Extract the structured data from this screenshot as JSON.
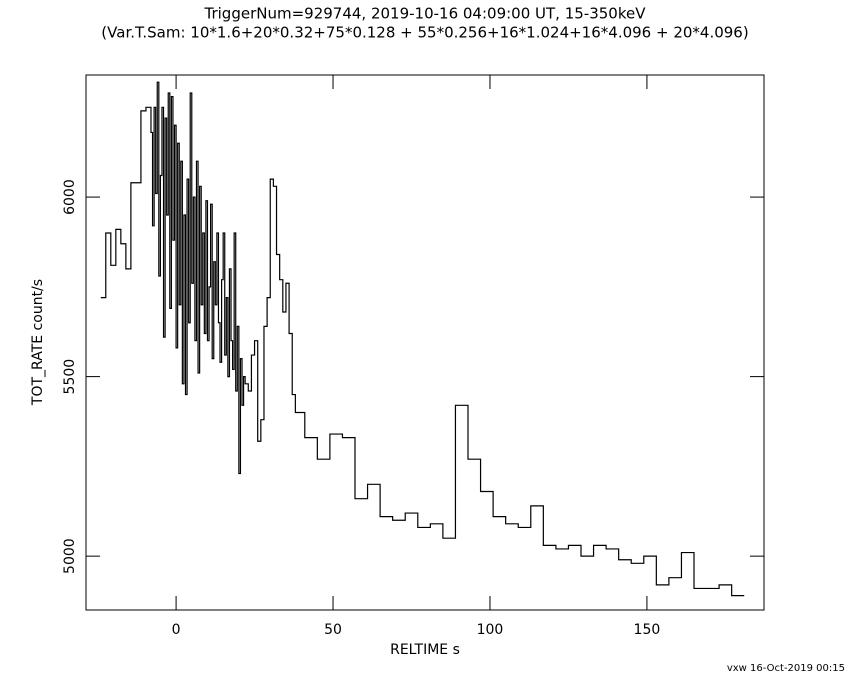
{
  "chart_data": {
    "type": "step",
    "title": "TriggerNum=929744, 2019-10-16 04:09:00 UT, 15-350keV",
    "subtitle": "(Var.T.Sam: 10*1.6+20*0.32+75*0.128  +  55*0.256+16*1.024+16*4.096  +  20*4.096)",
    "xlabel": "RELTIME  s",
    "ylabel": "TOT_RATE  count/s",
    "annotation": "vxw 16-Oct-2019 00:15",
    "x": [
      -24,
      -22.4,
      -20.8,
      -19.2,
      -17.6,
      -16,
      -14.4,
      -12.8,
      -11.2,
      -9.6,
      -8,
      -7.5,
      -7,
      -6.5,
      -6,
      -5.5,
      -5,
      -4.5,
      -4,
      -3.5,
      -3,
      -2.5,
      -2,
      -1.5,
      -1,
      -0.5,
      0,
      0.5,
      1,
      1.5,
      2,
      2.5,
      3,
      3.5,
      4,
      4.5,
      5,
      5.5,
      6,
      6.5,
      7,
      7.5,
      8,
      8.5,
      9,
      9.5,
      10,
      10.5,
      11,
      11.5,
      12,
      12.5,
      13,
      13.5,
      14,
      14.5,
      15,
      15.5,
      16,
      16.5,
      17,
      17.5,
      18,
      18.5,
      19,
      19.5,
      20,
      20.5,
      21,
      21.5,
      22,
      23,
      24,
      25,
      26,
      27,
      28,
      29,
      30,
      31,
      32,
      33,
      34,
      35,
      36,
      37,
      38,
      41,
      45,
      49,
      53,
      57,
      61,
      65,
      69,
      73,
      77,
      81,
      85,
      89,
      93,
      97,
      101,
      105,
      109,
      113,
      117,
      121,
      125,
      129,
      133,
      137,
      141,
      145,
      149,
      153,
      157,
      161,
      165,
      169,
      173,
      177,
      181
    ],
    "series": [
      {
        "color": "#000000",
        "values": [
          5720,
          5900,
          5810,
          5910,
          5870,
          5800,
          6040,
          6040,
          6240,
          6250,
          6180,
          5920,
          6250,
          6010,
          6320,
          5780,
          6060,
          6250,
          5610,
          6220,
          5950,
          6290,
          5690,
          6280,
          5880,
          6200,
          5580,
          6150,
          5700,
          6100,
          5480,
          5950,
          5450,
          6050,
          5650,
          6290,
          5760,
          6000,
          5600,
          6100,
          5510,
          6030,
          5700,
          5900,
          5620,
          5990,
          5600,
          5750,
          5980,
          5550,
          5820,
          5700,
          5900,
          5650,
          5540,
          5770,
          5900,
          5560,
          5720,
          5500,
          5800,
          5600,
          5520,
          5900,
          5460,
          5640,
          5230,
          5550,
          5420,
          5500,
          5480,
          5460,
          5560,
          5600,
          5320,
          5380,
          5640,
          5720,
          6050,
          6030,
          5840,
          5770,
          5680,
          5760,
          5620,
          5450,
          5400,
          5330,
          5270,
          5340,
          5330,
          5160,
          5200,
          5110,
          5100,
          5120,
          5080,
          5090,
          5050,
          5420,
          5270,
          5180,
          5110,
          5090,
          5080,
          5140,
          5030,
          5020,
          5030,
          5000,
          5030,
          5020,
          4990,
          4980,
          5000,
          4920,
          4940,
          5010,
          4910,
          4910,
          4920,
          4890,
          4890
        ]
      }
    ],
    "xlim": [
      -28.7,
      187.3
    ],
    "ylim": [
      4850,
      6340
    ],
    "xticks": [
      0,
      50,
      100,
      150
    ],
    "yticks": [
      5000,
      5500,
      6000
    ]
  }
}
